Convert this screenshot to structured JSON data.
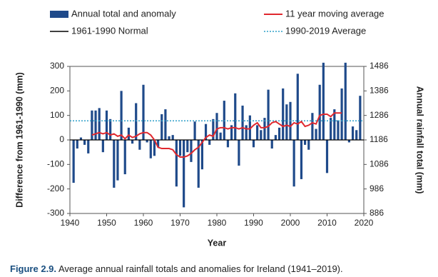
{
  "chart_data": {
    "type": "bar-line",
    "x": [
      1941,
      1942,
      1943,
      1944,
      1945,
      1946,
      1947,
      1948,
      1949,
      1950,
      1951,
      1952,
      1953,
      1954,
      1955,
      1956,
      1957,
      1958,
      1959,
      1960,
      1961,
      1962,
      1963,
      1964,
      1965,
      1966,
      1967,
      1968,
      1969,
      1970,
      1971,
      1972,
      1973,
      1974,
      1975,
      1976,
      1977,
      1978,
      1979,
      1980,
      1981,
      1982,
      1983,
      1984,
      1985,
      1986,
      1987,
      1988,
      1989,
      1990,
      1991,
      1992,
      1993,
      1994,
      1995,
      1996,
      1997,
      1998,
      1999,
      2000,
      2001,
      2002,
      2003,
      2004,
      2005,
      2006,
      2007,
      2008,
      2009,
      2010,
      2011,
      2012,
      2013,
      2014,
      2015,
      2016,
      2017,
      2018,
      2019
    ],
    "series": [
      {
        "name": "Annual total and anomaly",
        "color": "#1f4a8a",
        "kind": "bar",
        "values": [
          -175,
          -35,
          10,
          -20,
          -55,
          120,
          120,
          130,
          -50,
          120,
          85,
          -195,
          -165,
          200,
          -140,
          50,
          -15,
          150,
          -40,
          225,
          -10,
          -75,
          -65,
          -30,
          105,
          125,
          15,
          20,
          -190,
          -65,
          -275,
          -50,
          -90,
          75,
          -195,
          -120,
          65,
          -20,
          85,
          110,
          30,
          160,
          -30,
          60,
          190,
          -105,
          140,
          60,
          100,
          -30,
          60,
          40,
          90,
          205,
          -35,
          20,
          50,
          210,
          145,
          155,
          -190,
          270,
          -160,
          -20,
          -40,
          110,
          45,
          225,
          315,
          -135,
          90,
          125,
          80,
          210,
          315,
          -10,
          55,
          40,
          180
        ]
      },
      {
        "name": "11 year moving average",
        "color": "#e0282e",
        "kind": "line",
        "values": [
          null,
          null,
          null,
          null,
          null,
          20,
          25,
          30,
          25,
          30,
          20,
          25,
          15,
          20,
          5,
          20,
          10,
          15,
          25,
          30,
          30,
          20,
          0,
          -30,
          -35,
          -35,
          -35,
          -40,
          -60,
          -70,
          -70,
          -65,
          -55,
          -40,
          -30,
          -10,
          10,
          20,
          15,
          45,
          50,
          50,
          45,
          50,
          50,
          45,
          50,
          45,
          45,
          60,
          70,
          50,
          50,
          55,
          70,
          75,
          65,
          55,
          60,
          55,
          70,
          65,
          75,
          55,
          60,
          70,
          65,
          100,
          105,
          105,
          95,
          110,
          110,
          110,
          null,
          null,
          null,
          null,
          null
        ]
      }
    ],
    "reference_lines": [
      {
        "name": "1961-1990 Normal",
        "color": "#000000",
        "style": "solid",
        "value": 0
      },
      {
        "name": "1990-2019 Average",
        "color": "#2e9fc8",
        "style": "dotted",
        "value": 78
      }
    ],
    "xlabel": "Year",
    "ylabel": "Difference from 1961-1990 (mm)",
    "y2label": "Annual rainfall total (mm)",
    "xlim": [
      1940,
      2020
    ],
    "xticks": [
      1940,
      1950,
      1960,
      1970,
      1980,
      1990,
      2000,
      2010,
      2020
    ],
    "ylim": [
      -300,
      300
    ],
    "yticks": [
      -300,
      -200,
      -100,
      0,
      100,
      200,
      300
    ],
    "y2lim": [
      886,
      1486
    ],
    "y2ticks": [
      886,
      986,
      1086,
      1186,
      1286,
      1386,
      1486
    ],
    "caption_label": "Figure 2.9.",
    "caption": "Average annual rainfall totals and anomalies for Ireland (1941–2019)."
  }
}
